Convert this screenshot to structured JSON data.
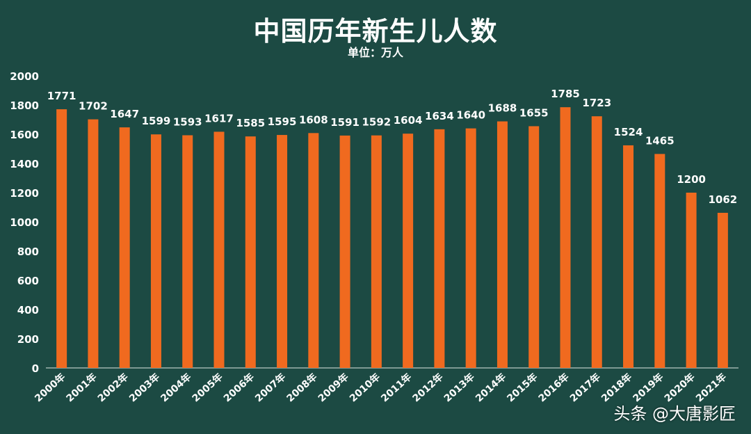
{
  "chart_data": {
    "type": "bar",
    "title": "中国历年新生儿人数",
    "subtitle": "单位：万人",
    "categories": [
      "2000年",
      "2001年",
      "2002年",
      "2003年",
      "2004年",
      "2005年",
      "2006年",
      "2007年",
      "2008年",
      "2009年",
      "2010年",
      "2011年",
      "2012年",
      "2013年",
      "2014年",
      "2015年",
      "2016年",
      "2017年",
      "2018年",
      "2019年",
      "2020年",
      "2021年"
    ],
    "values": [
      1771,
      1702,
      1647,
      1599,
      1593,
      1617,
      1585,
      1595,
      1608,
      1591,
      1592,
      1604,
      1634,
      1640,
      1688,
      1655,
      1785,
      1723,
      1524,
      1465,
      1200,
      1062
    ],
    "ylim": [
      0,
      2000
    ],
    "yticks": [
      0,
      200,
      400,
      600,
      800,
      1000,
      1200,
      1400,
      1600,
      1800,
      2000
    ],
    "grid": false,
    "colors": {
      "background": "#1c4a43",
      "bar": "#f06a1f",
      "text": "#ffffff"
    }
  },
  "watermark": "头条 @大唐影匠"
}
